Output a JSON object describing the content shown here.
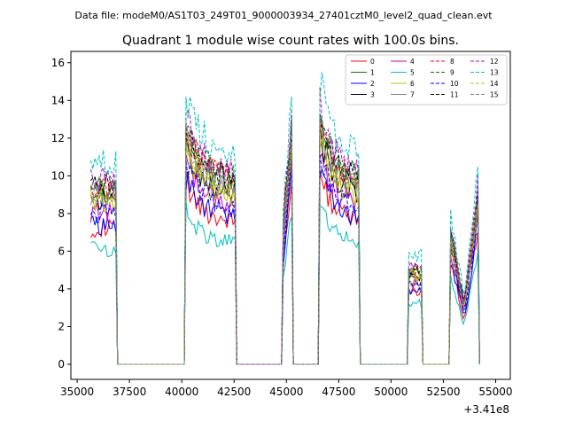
{
  "suptitle": "Data file: modeM0/AS1T03_249T01_9000003934_27401cztM0_level2_quad_clean.evt",
  "chart_data": {
    "type": "line",
    "title": "Quadrant 1 module wise count rates with 100.0s bins.",
    "xlabel": "",
    "ylabel": "",
    "x_offset_label": "+3.41e8",
    "xlim": [
      34700,
      55700
    ],
    "ylim": [
      -0.8,
      16.6
    ],
    "xticks": [
      35000,
      37500,
      40000,
      42500,
      45000,
      47500,
      50000,
      52500,
      55000
    ],
    "xtick_labels": [
      "35000",
      "37500",
      "40000",
      "42500",
      "45000",
      "47500",
      "50000",
      "52500",
      "55000"
    ],
    "yticks": [
      0,
      2,
      4,
      6,
      8,
      10,
      12,
      14,
      16
    ],
    "ytick_labels": [
      "0",
      "2",
      "4",
      "6",
      "8",
      "10",
      "12",
      "14",
      "16"
    ],
    "legend_position": "top-right",
    "legend_ncol": 4,
    "segments": [
      {
        "start": 35650,
        "end": 36850,
        "shape": "flat",
        "level": 8.6
      },
      {
        "start": 40200,
        "end": 42550,
        "shape": "decay",
        "peak": 11.5,
        "tail": 8.9
      },
      {
        "start": 44850,
        "end": 45250,
        "shape": "spike",
        "start_level": 6.5,
        "peak": 11.5
      },
      {
        "start": 46600,
        "end": 48450,
        "shape": "decay",
        "peak": 12.2,
        "tail": 8.9
      },
      {
        "start": 50850,
        "end": 51450,
        "shape": "bump",
        "level": 4.6
      },
      {
        "start": 52850,
        "end": 54150,
        "shape": "dip",
        "start_level": 6.3,
        "mid_level": 2.8,
        "end_level": 8.4
      }
    ],
    "series": [
      {
        "name": "0",
        "color": "#ff0000",
        "dash": "solid",
        "scale": 0.84
      },
      {
        "name": "1",
        "color": "#008000",
        "dash": "solid",
        "scale": 1.07
      },
      {
        "name": "2",
        "color": "#0000ff",
        "dash": "solid",
        "scale": 0.86
      },
      {
        "name": "3",
        "color": "#000000",
        "dash": "solid",
        "scale": 1.01
      },
      {
        "name": "4",
        "color": "#bf00bf",
        "dash": "solid",
        "scale": 0.94
      },
      {
        "name": "5",
        "color": "#00bfbf",
        "dash": "solid",
        "scale": 0.71
      },
      {
        "name": "6",
        "color": "#bfbf00",
        "dash": "solid",
        "scale": 0.99
      },
      {
        "name": "7",
        "color": "#7f7f7f",
        "dash": "solid",
        "scale": 1.04
      },
      {
        "name": "8",
        "color": "#ff0000",
        "dash": "dashed",
        "scale": 1.09
      },
      {
        "name": "9",
        "color": "#008000",
        "dash": "dashed",
        "scale": 1.11
      },
      {
        "name": "10",
        "color": "#0000ff",
        "dash": "dashed",
        "scale": 0.93
      },
      {
        "name": "11",
        "color": "#000000",
        "dash": "dashed",
        "scale": 1.1
      },
      {
        "name": "12",
        "color": "#bf00bf",
        "dash": "dashed",
        "scale": 1.14
      },
      {
        "name": "13",
        "color": "#00bfbf",
        "dash": "dashed",
        "scale": 1.24
      },
      {
        "name": "14",
        "color": "#bfbf00",
        "dash": "dashed",
        "scale": 1.03
      },
      {
        "name": "15",
        "color": "#7f7f7f",
        "dash": "dashed",
        "scale": 1.06
      }
    ]
  }
}
